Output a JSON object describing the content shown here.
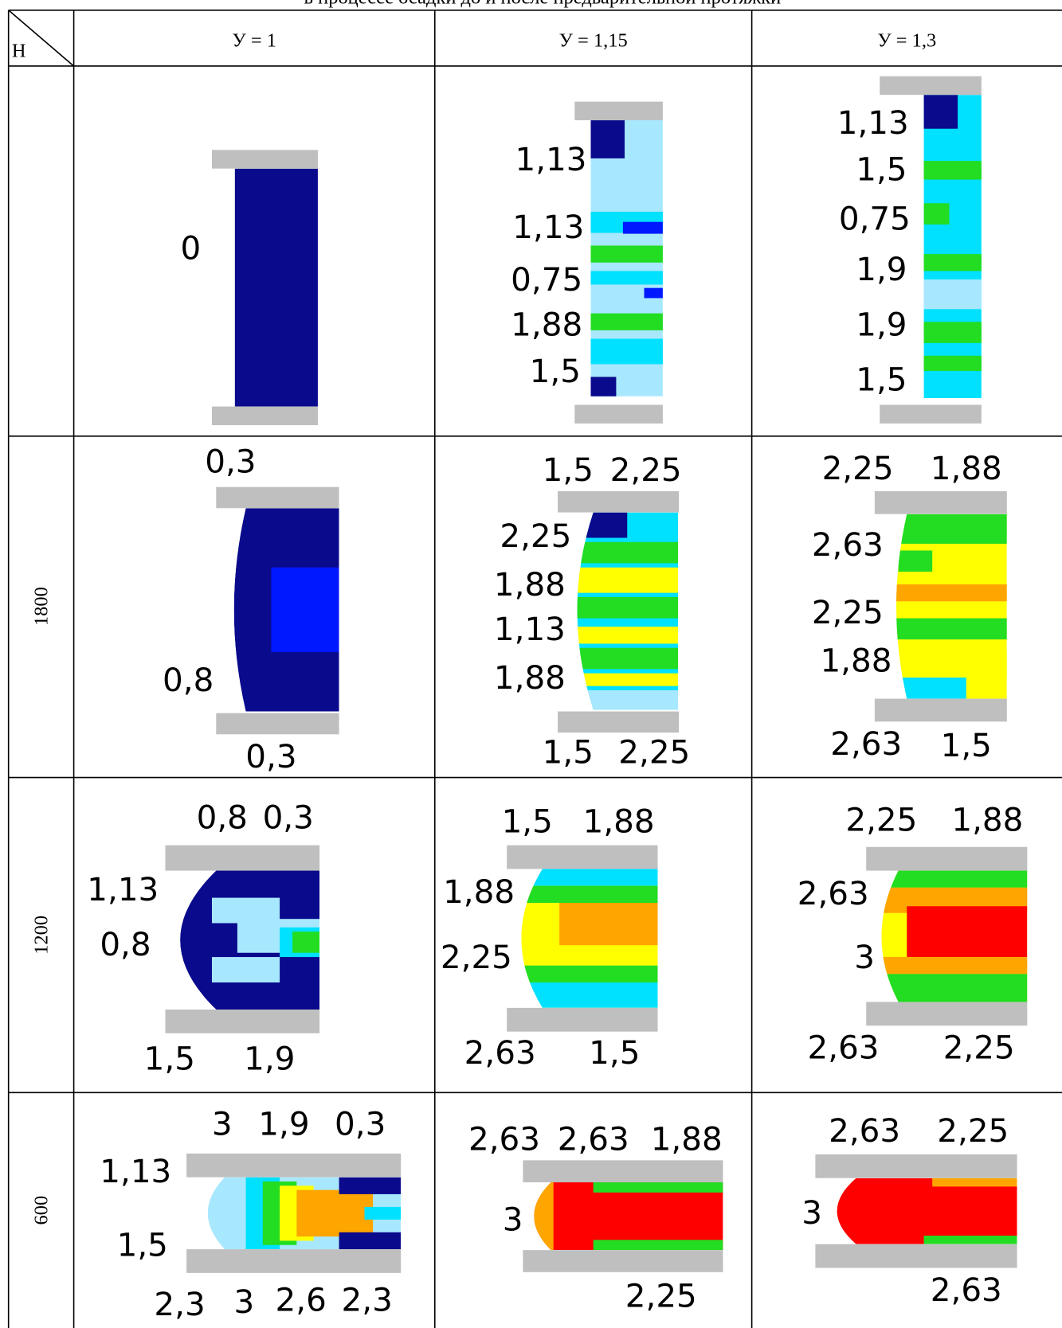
{
  "title": "в процессе осадки до и после предварительной протяжки",
  "table": {
    "corner": "H",
    "columns": [
      "У = 1",
      "У = 1,15",
      "У = 1,3"
    ],
    "rows": [
      {
        "cells": [
          {
            "labels": [
              "0"
            ]
          },
          {
            "labels": [
              "1,13",
              "1,13",
              "0,75",
              "1,88",
              "1,5"
            ]
          },
          {
            "labels": [
              "1,13",
              "1,5",
              "0,75",
              "1,9",
              "1,9",
              "1,5"
            ]
          }
        ]
      },
      {
        "label": "1800",
        "cells": [
          {
            "labels": [
              "0,3",
              "0,8",
              "0,3"
            ]
          },
          {
            "labels": [
              "1,5",
              "2,25",
              "2,25",
              "1,88",
              "1,13",
              "1,88",
              "1,5",
              "2,25"
            ]
          },
          {
            "labels": [
              "2,25",
              "1,88",
              "2,63",
              "2,25",
              "1,88",
              "2,63",
              "1,5"
            ]
          }
        ]
      },
      {
        "label": "1200",
        "cells": [
          {
            "labels": [
              "0,8",
              "0,3",
              "1,13",
              "0,8",
              "1,5",
              "1,9"
            ]
          },
          {
            "labels": [
              "1,5",
              "1,88",
              "1,88",
              "2,25",
              "2,63",
              "1,5"
            ]
          },
          {
            "labels": [
              "2,25",
              "1,88",
              "2,63",
              "3",
              "2,63",
              "2,25"
            ]
          }
        ]
      },
      {
        "label": "600",
        "cells": [
          {
            "labels": [
              "3",
              "1,9",
              "0,3",
              "1,13",
              "1,5",
              "2,3",
              "3",
              "2,6",
              "2,3"
            ]
          },
          {
            "labels": [
              "2,63",
              "2,63",
              "1,88",
              "3",
              "2,25"
            ]
          },
          {
            "labels": [
              "2,63",
              "2,25",
              "3",
              "2,63"
            ]
          }
        ]
      }
    ]
  }
}
